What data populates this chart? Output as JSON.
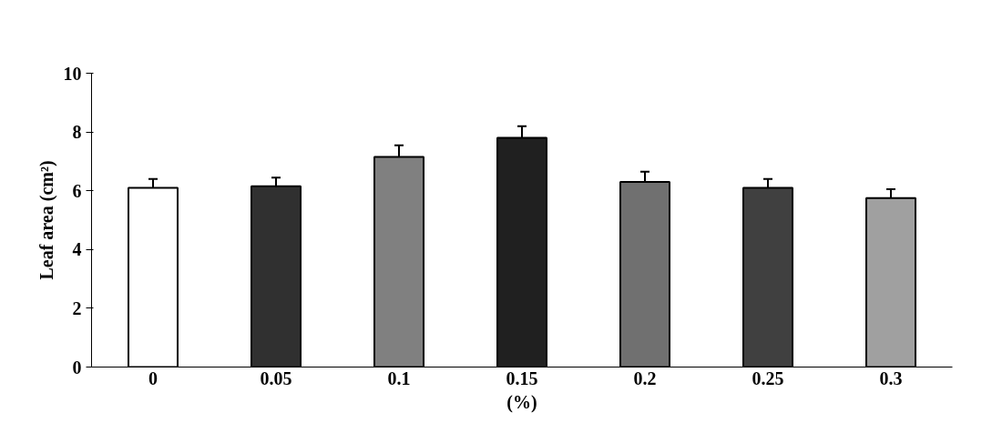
{
  "chart_data": {
    "type": "bar",
    "xlabel": "(%)",
    "ylabel": "Leaf area (cm²)",
    "categories": [
      "0",
      "0.05",
      "0.1",
      "0.15",
      "0.2",
      "0.25",
      "0.3"
    ],
    "values": [
      6.1,
      6.15,
      7.15,
      7.8,
      6.3,
      6.1,
      5.75
    ],
    "errors": [
      0.3,
      0.3,
      0.4,
      0.4,
      0.35,
      0.3,
      0.3
    ],
    "colors": [
      "#ffffff",
      "#303030",
      "#808080",
      "#202020",
      "#707070",
      "#404040",
      "#a0a0a0"
    ],
    "ylim": [
      0,
      10
    ],
    "yticks": [
      0,
      2,
      4,
      6,
      8,
      10
    ],
    "grid": false
  }
}
